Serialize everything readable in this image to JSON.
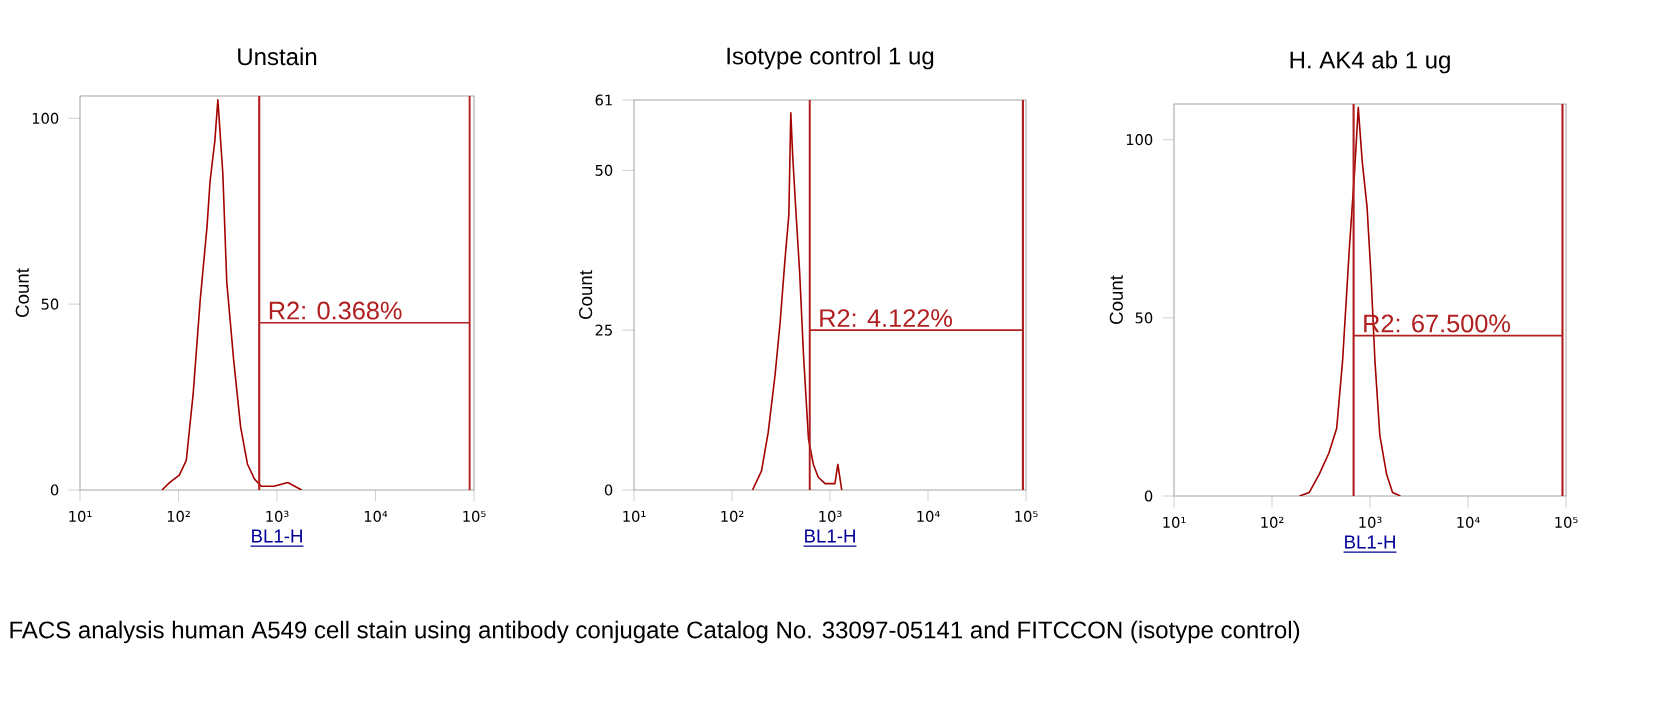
{
  "chart_data": [
    {
      "type": "line",
      "title": "Unstain",
      "xlabel": "BL1-H",
      "ylabel": "Count",
      "log": "x",
      "xlim": [
        10,
        100000
      ],
      "ylim": [
        0,
        106
      ],
      "xticks": [
        {
          "value": 10,
          "label": "10¹"
        },
        {
          "value": 100,
          "label": "10²"
        },
        {
          "value": 1000,
          "label": "10³"
        },
        {
          "value": 10000,
          "label": "10⁴"
        },
        {
          "value": 100000,
          "label": "10⁵"
        }
      ],
      "yticks": [
        0,
        50,
        100
      ],
      "series": [
        {
          "color": "#a30000",
          "x": [
            68,
            81,
            102,
            120,
            141,
            166,
            195,
            209,
            234,
            251,
            282,
            309,
            363,
            427,
            501,
            589,
            692,
            933,
            1288,
            1778
          ],
          "values": [
            0,
            2,
            4,
            8,
            26,
            51,
            71,
            83,
            94,
            105,
            85,
            56,
            35,
            17,
            7,
            3,
            1,
            1,
            2,
            0
          ]
        },
        {
          "color": "#b02020",
          "x": [
            660,
            90000
          ],
          "values": [
            45,
            45
          ]
        }
      ],
      "ref_lines": [
        {
          "axis": "x",
          "value": 660,
          "color": "#b02020"
        },
        {
          "axis": "x",
          "value": 90000,
          "color": "#b02020"
        }
      ],
      "annotations": [
        {
          "text": "R2: 0.368%",
          "x": 660,
          "y": 45
        },
        "FACS analysis human A549 cell stain using antibody conjugate Catalog No. 33097-05141 and FITCCON (isotype control)"
      ]
    },
    {
      "type": "line",
      "title": "Isotype control 1 ug",
      "xlabel": "BL1-H",
      "ylabel": "Count",
      "log": "x",
      "xlim": [
        10,
        100000
      ],
      "ylim": [
        0,
        61
      ],
      "xticks": [
        {
          "value": 10,
          "label": "10¹"
        },
        {
          "value": 100,
          "label": "10²"
        },
        {
          "value": 1000,
          "label": "10³"
        },
        {
          "value": 10000,
          "label": "10⁴"
        },
        {
          "value": 100000,
          "label": "10⁵"
        }
      ],
      "yticks": [
        0,
        25,
        50,
        61
      ],
      "series": [
        {
          "color": "#a30000",
          "x": [
            162,
            200,
            234,
            275,
            309,
            347,
            380,
            398,
            417,
            447,
            490,
            537,
            603,
            676,
            759,
            891,
            1122,
            1202,
            1318
          ],
          "values": [
            0,
            3,
            9,
            18,
            26,
            36,
            43,
            59,
            52,
            44,
            34,
            21,
            8,
            4,
            2,
            1,
            1,
            4,
            0
          ]
        },
        {
          "color": "#b02020",
          "x": [
            620,
            93000
          ],
          "values": [
            25,
            25
          ]
        }
      ],
      "ref_lines": [
        {
          "axis": "x",
          "value": 620,
          "color": "#b02020"
        },
        {
          "axis": "x",
          "value": 93000,
          "color": "#b02020"
        }
      ],
      "annotations": [
        {
          "text": "R2: 4.122%",
          "x": 620,
          "y": 25
        }
      ]
    },
    {
      "type": "line",
      "title": "H. AK4 ab 1 ug",
      "xlabel": "BL1-H",
      "ylabel": "Count",
      "log": "x",
      "xlim": [
        10,
        100000
      ],
      "ylim": [
        0,
        110
      ],
      "xticks": [
        {
          "value": 10,
          "label": "10¹"
        },
        {
          "value": 100,
          "label": "10²"
        },
        {
          "value": 1000,
          "label": "10³"
        },
        {
          "value": 10000,
          "label": "10⁴"
        },
        {
          "value": 100000,
          "label": "10⁵"
        }
      ],
      "yticks": [
        0,
        50,
        100
      ],
      "series": [
        {
          "color": "#a30000",
          "x": [
            191,
            240,
            302,
            380,
            457,
            525,
            617,
            692,
            759,
            832,
            933,
            1023,
            1122,
            1259,
            1479,
            1698,
            2042
          ],
          "values": [
            0,
            1,
            6,
            12,
            19,
            38,
            70,
            90,
            109,
            94,
            81,
            62,
            38,
            17,
            6,
            1,
            0
          ]
        },
        {
          "color": "#b02020",
          "x": [
            680,
            92000
          ],
          "values": [
            45,
            45
          ]
        }
      ],
      "ref_lines": [
        {
          "axis": "x",
          "value": 680,
          "color": "#b02020"
        },
        {
          "axis": "x",
          "value": 92000,
          "color": "#b02020"
        }
      ],
      "annotations": [
        {
          "text": "R2: 67.500%",
          "x": 680,
          "y": 45
        }
      ]
    }
  ]
}
